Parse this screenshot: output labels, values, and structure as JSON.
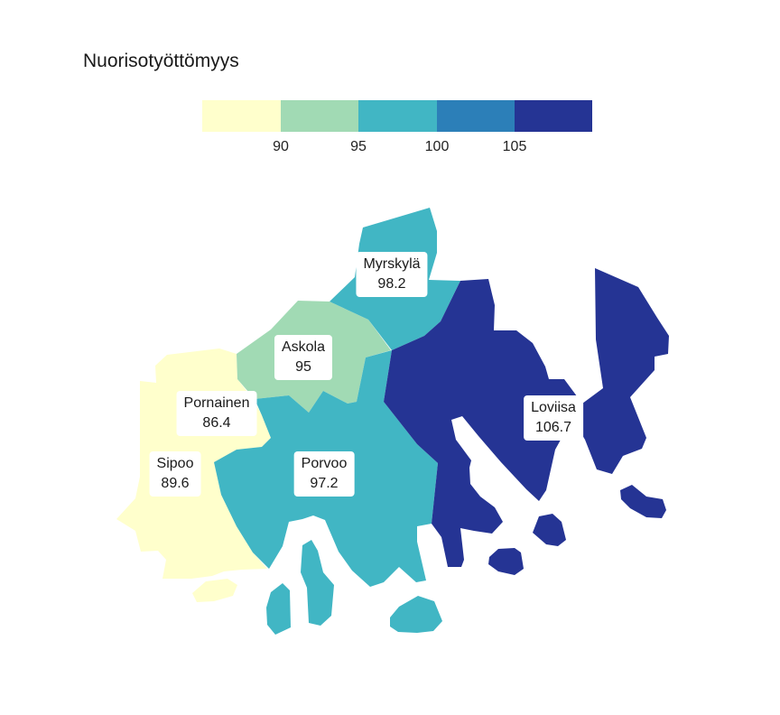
{
  "title": "Nuorisotyöttömyys",
  "legend": {
    "colors": [
      "#ffffcc",
      "#a1dab4",
      "#41b6c4",
      "#2c7fb8",
      "#253494"
    ],
    "ticks": [
      "90",
      "95",
      "100",
      "105"
    ]
  },
  "regions": [
    {
      "name": "Myrskylä",
      "value": "98.2",
      "color": "#41b6c4"
    },
    {
      "name": "Askola",
      "value": "95",
      "color": "#a1dab4"
    },
    {
      "name": "Pornainen",
      "value": "86.4",
      "color": "#ffffcc"
    },
    {
      "name": "Sipoo",
      "value": "89.6",
      "color": "#ffffcc"
    },
    {
      "name": "Porvoo",
      "value": "97.2",
      "color": "#41b6c4"
    },
    {
      "name": "Loviisa",
      "value": "106.7",
      "color": "#253494"
    }
  ]
}
